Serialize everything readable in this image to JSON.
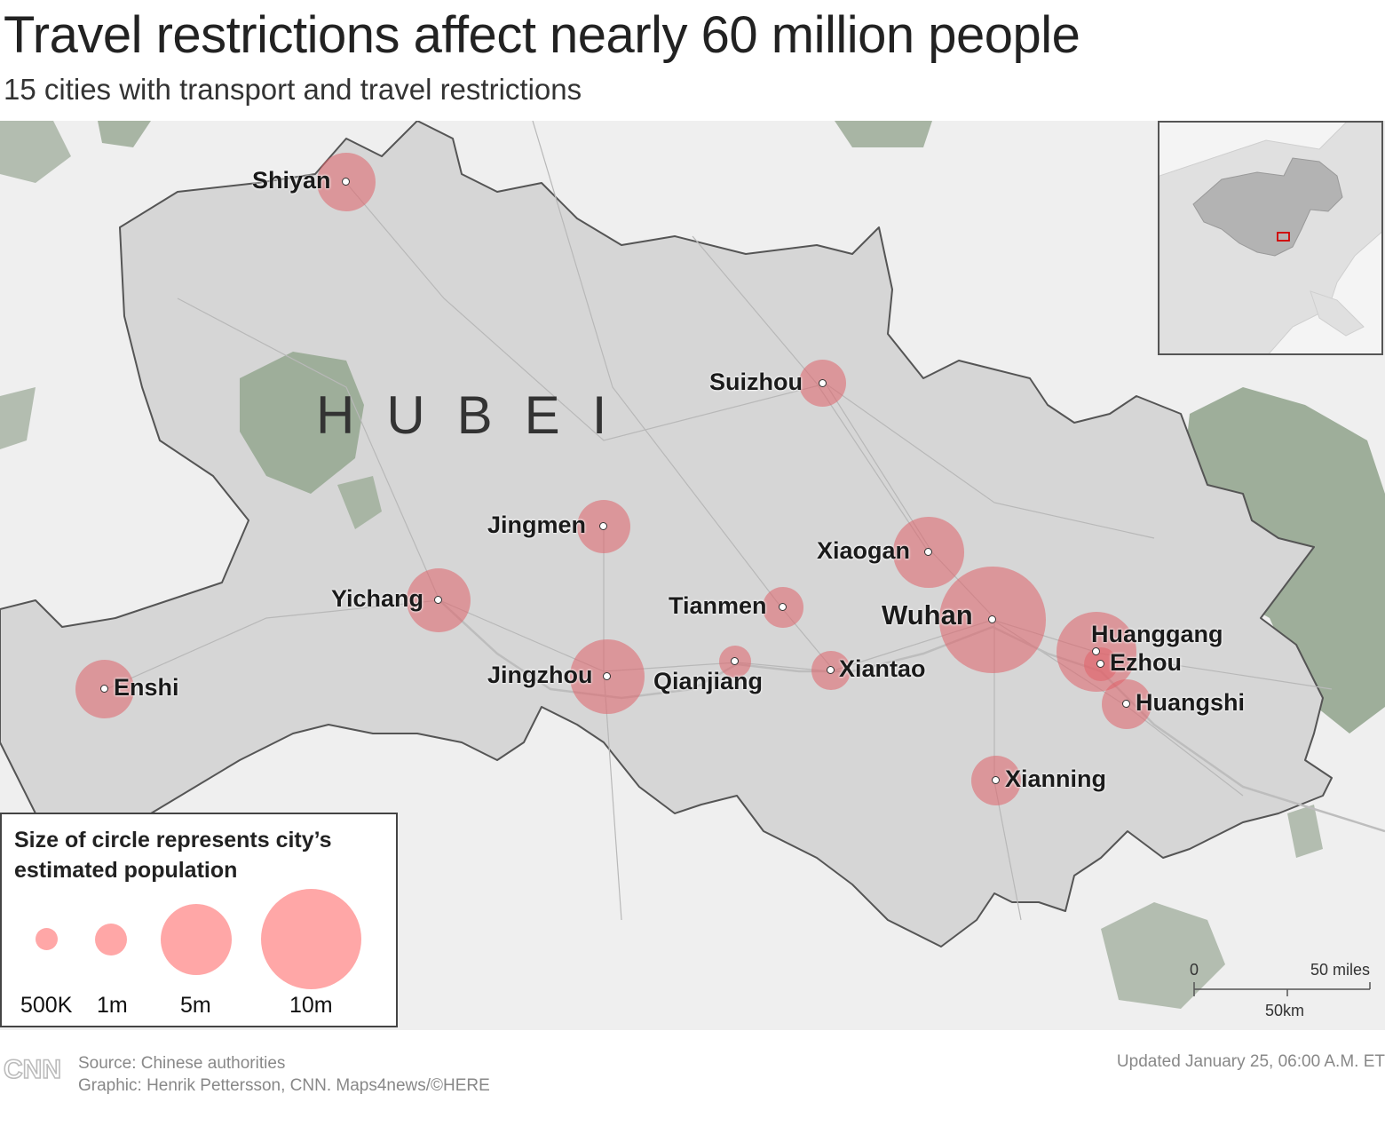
{
  "header": {
    "title": "Travel restrictions affect nearly 60 million people",
    "subtitle": "15 cities with transport and travel restrictions"
  },
  "map": {
    "region_label": "HUBEI",
    "colors": {
      "bubble": "#e0626a",
      "land": "#d6d6d6",
      "outside": "#efefef",
      "forest": "#9eae9a",
      "border": "#555555"
    },
    "cities": [
      {
        "name": "Shiyan",
        "label": "Shiyan",
        "population_millions": 3.4
      },
      {
        "name": "Suizhou",
        "label": "Suizhou",
        "population_millions": 2.2
      },
      {
        "name": "Jingmen",
        "label": "Jingmen",
        "population_millions": 2.9
      },
      {
        "name": "Xiaogan",
        "label": "Xiaogan",
        "population_millions": 4.9
      },
      {
        "name": "Yichang",
        "label": "Yichang",
        "population_millions": 4.1
      },
      {
        "name": "Tianmen",
        "label": "Tianmen",
        "population_millions": 1.6
      },
      {
        "name": "Wuhan",
        "label": "Wuhan",
        "population_millions": 11.1
      },
      {
        "name": "Huanggang",
        "label": "Huanggang",
        "population_millions": 6.3
      },
      {
        "name": "Ezhou",
        "label": "Ezhou",
        "population_millions": 1.1
      },
      {
        "name": "Enshi",
        "label": "Enshi",
        "population_millions": 3.4
      },
      {
        "name": "Jingzhou",
        "label": "Jingzhou",
        "population_millions": 5.6
      },
      {
        "name": "Qianjiang",
        "label": "Qianjiang",
        "population_millions": 1.0
      },
      {
        "name": "Xiantao",
        "label": "Xiantao",
        "population_millions": 1.5
      },
      {
        "name": "Huangshi",
        "label": "Huangshi",
        "population_millions": 2.5
      },
      {
        "name": "Xianning",
        "label": "Xianning",
        "population_millions": 2.5
      }
    ]
  },
  "legend": {
    "title": "Size of circle represents city’s estimated population",
    "items": [
      {
        "label": "500K",
        "value_millions": 0.5
      },
      {
        "label": "1m",
        "value_millions": 1
      },
      {
        "label": "5m",
        "value_millions": 5
      },
      {
        "label": "10m",
        "value_millions": 10
      }
    ]
  },
  "scale_bar": {
    "zero": "0",
    "miles": "50 miles",
    "km": "50km"
  },
  "footer": {
    "source": "Source: Chinese authorities",
    "credit": "Graphic: Henrik Pettersson, CNN. Maps4news/©HERE",
    "updated": "Updated January 25, 06:00 A.M. ET",
    "logo": "CNN"
  }
}
